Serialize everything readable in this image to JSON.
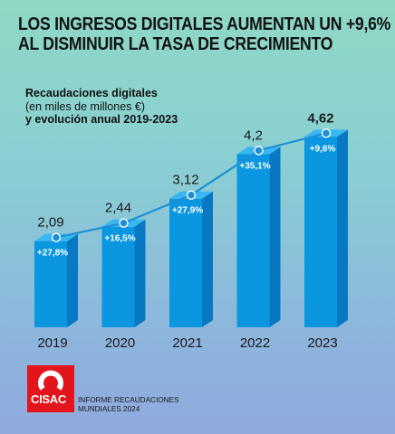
{
  "header": {
    "title_line1": "LOS INGRESOS DIGITALES AUMENTAN UN +9,6%",
    "title_line2": "AL DISMINUIR LA TASA DE CRECIMIENTO"
  },
  "chart_data": {
    "type": "bar",
    "title": "Recaudaciones digitales",
    "subtitle_line1": "(en miles de millones €)",
    "subtitle_line2": "y evolución anual 2019-2023",
    "categories": [
      "2019",
      "2020",
      "2021",
      "2022",
      "2023"
    ],
    "series": [
      {
        "values": [
          2.09,
          2.44,
          3.12,
          4.2,
          4.62
        ]
      }
    ],
    "value_labels": [
      "2,09",
      "2,44",
      "3,12",
      "4,2",
      "4,62"
    ],
    "growth_labels": [
      "+27,8%",
      "+16,5%",
      "+27,9%",
      "+35,1%",
      "+9,6%"
    ],
    "ylim": [
      0,
      5
    ],
    "grid": false,
    "legend": "none",
    "colors": {
      "bar_front": "#0a97e0",
      "bar_side": "#0878c2",
      "bar_top": "#39b7f3",
      "line": "#1c8fd6"
    }
  },
  "footer": {
    "logo_text": "CISAC",
    "report_line1": "INFORME RECAUDACIONES",
    "report_line2": "MUNDIALES 2024"
  }
}
